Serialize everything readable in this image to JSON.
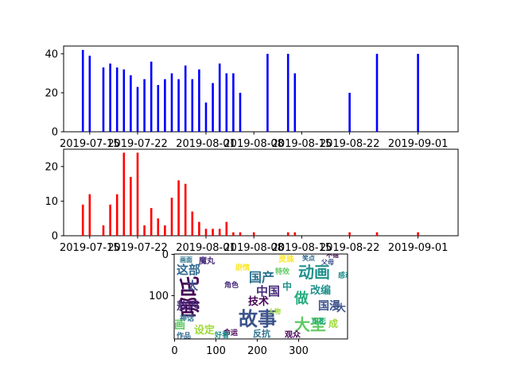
{
  "chart_data": [
    {
      "type": "bar",
      "title": "",
      "xlabel": "",
      "ylabel": "",
      "x_tick_labels": [
        "2019-07-15",
        "2019-07-22",
        "2019-08-01",
        "2019-08-08",
        "2019-08-15",
        "2019-08-22",
        "2019-09-01"
      ],
      "y_ticks": [
        0,
        20,
        40
      ],
      "ylim": [
        0,
        44
      ],
      "color": "#0000ff",
      "days": [
        0,
        1,
        3,
        4,
        5,
        6,
        7,
        8,
        9,
        10,
        11,
        12,
        13,
        14,
        15,
        16,
        17,
        18,
        19,
        20,
        21,
        22,
        23,
        27,
        30,
        31,
        39,
        43,
        49
      ],
      "values": [
        42,
        39,
        33,
        35,
        33,
        32,
        29,
        23,
        27,
        36,
        24,
        27,
        30,
        27,
        34,
        27,
        32,
        15,
        25,
        35,
        30,
        30,
        20,
        40,
        40,
        30,
        20,
        40,
        40
      ]
    },
    {
      "type": "bar",
      "title": "",
      "xlabel": "",
      "ylabel": "",
      "x_tick_labels": [
        "2019-07-15",
        "2019-07-22",
        "2019-08-01",
        "2019-08-08",
        "2019-08-15",
        "2019-08-22",
        "2019-09-01"
      ],
      "y_ticks": [
        0,
        10,
        20
      ],
      "ylim": [
        0,
        25
      ],
      "color": "#ff0000",
      "days": [
        0,
        1,
        3,
        4,
        5,
        6,
        7,
        8,
        9,
        10,
        11,
        12,
        13,
        14,
        15,
        16,
        17,
        18,
        19,
        20,
        21,
        22,
        23,
        25,
        30,
        31,
        39,
        43,
        49
      ],
      "values": [
        9,
        12,
        3,
        9,
        12,
        24,
        17,
        24,
        3,
        8,
        5,
        3,
        11,
        16,
        15,
        7,
        4,
        2,
        2,
        2,
        4,
        1,
        1,
        1,
        1,
        1,
        1,
        1,
        1
      ]
    },
    {
      "type": "wordcloud",
      "x_tick_labels": [
        "0",
        "100",
        "200",
        "300"
      ],
      "y_tick_labels": [
        "0",
        "100"
      ],
      "words": [
        {
          "text": "哪吒",
          "color": "#440154"
        },
        {
          "text": "故事",
          "color": "#3b528b"
        },
        {
          "text": "动画",
          "color": "#21918c"
        },
        {
          "text": "大圣",
          "color": "#5ec962"
        },
        {
          "text": "国产",
          "color": "#2c728e"
        },
        {
          "text": "中国",
          "color": "#472d7b"
        },
        {
          "text": "做",
          "color": "#28ae80"
        },
        {
          "text": "国漫",
          "color": "#3b528b"
        },
        {
          "text": "技术",
          "color": "#440154"
        },
        {
          "text": "设定",
          "color": "#a0da39"
        },
        {
          "text": "这部",
          "color": "#31688e"
        },
        {
          "text": "改编",
          "color": "#21918c"
        },
        {
          "text": "敖丙",
          "color": "#472d7b"
        },
        {
          "text": "太",
          "color": "#3b528b"
        },
        {
          "text": "画",
          "color": "#5ec962"
        },
        {
          "text": "成",
          "color": "#a0da39"
        },
        {
          "text": "反抗",
          "color": "#2c728e"
        },
        {
          "text": "观众",
          "color": "#440154"
        },
        {
          "text": "作品",
          "color": "#31688e"
        },
        {
          "text": "中",
          "color": "#21918c"
        },
        {
          "text": "剧情",
          "color": "#fde725"
        },
        {
          "text": "角色",
          "color": "#472d7b"
        },
        {
          "text": "父母",
          "color": "#3b528b"
        },
        {
          "text": "电影",
          "color": "#28ae80"
        },
        {
          "text": "命运",
          "color": "#440154"
        },
        {
          "text": "神话",
          "color": "#2c728e"
        },
        {
          "text": "特效",
          "color": "#5ec962"
        },
        {
          "text": "笑点",
          "color": "#31688e"
        },
        {
          "text": "感动",
          "color": "#21918c"
        },
        {
          "text": "人物",
          "color": "#a0da39"
        },
        {
          "text": "魔丸",
          "color": "#472d7b"
        },
        {
          "text": "灵珠",
          "color": "#fde725"
        },
        {
          "text": "大",
          "color": "#3b528b"
        },
        {
          "text": "不错",
          "color": "#440154"
        },
        {
          "text": "好看",
          "color": "#21918c"
        },
        {
          "text": "画面",
          "color": "#2c728e"
        }
      ]
    }
  ]
}
